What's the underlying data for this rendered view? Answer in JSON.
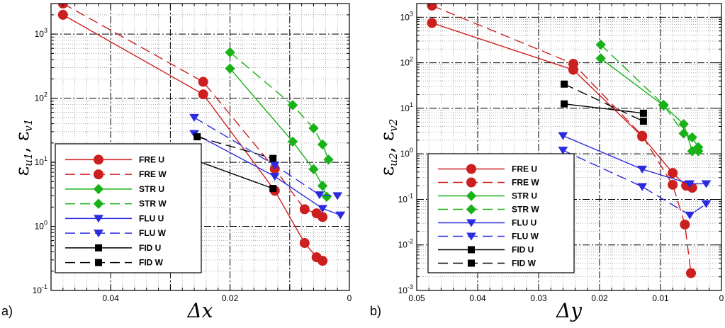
{
  "chart_data": [
    {
      "type": "line",
      "panel_label": "a)",
      "xlabel": "Δx",
      "ylabel_main": "ε",
      "ylabel_sub1": "u1",
      "ylabel_sep": ", ε",
      "ylabel_sub2": "v1",
      "x_reversed": true,
      "xlim": [
        0.05,
        0
      ],
      "ylim": [
        0.1,
        3000
      ],
      "y_log": true,
      "grid": true,
      "xticks": [
        0.04,
        0.02,
        0
      ],
      "xtick_labels": [
        "0.04",
        "0.02",
        "0"
      ],
      "yticks": [
        0.1,
        1,
        10,
        100,
        1000
      ],
      "ytick_base": "10",
      "ytick_exps": [
        "-1",
        "0",
        "1",
        "2",
        "3"
      ],
      "legend_position": "bottom-left",
      "series": [
        {
          "name": "FRE U",
          "color": "#cc1f1f",
          "dash": "solid",
          "marker": "circle",
          "x": [
            0.048,
            0.0245,
            0.0125,
            0.0075,
            0.0055,
            0.0045
          ],
          "y": [
            2000,
            115,
            3.6,
            0.55,
            0.33,
            0.29
          ]
        },
        {
          "name": "FRE W",
          "color": "#cc1f1f",
          "dash": "dashed",
          "marker": "circle",
          "x": [
            0.048,
            0.0245,
            0.0125,
            0.0075,
            0.0055,
            0.0045
          ],
          "y": [
            3000,
            180,
            7.9,
            1.85,
            1.6,
            1.4
          ]
        },
        {
          "name": "STR U",
          "color": "#19b219",
          "dash": "solid",
          "marker": "diamond",
          "x": [
            0.02,
            0.0095,
            0.006,
            0.0045,
            0.0038
          ],
          "y": [
            290,
            21,
            7.8,
            4.3,
            2.9
          ]
        },
        {
          "name": "STR W",
          "color": "#19b219",
          "dash": "dashed",
          "marker": "diamond",
          "x": [
            0.02,
            0.0095,
            0.006,
            0.0045,
            0.0035
          ],
          "y": [
            520,
            78,
            34,
            19,
            11
          ]
        },
        {
          "name": "FLU U",
          "color": "#2a2ae0",
          "dash": "solid",
          "marker": "triangle-down",
          "x": [
            0.026,
            0.0125,
            0.0045,
            0.0015
          ],
          "y": [
            28,
            6.0,
            1.9,
            1.5
          ]
        },
        {
          "name": "FLU W",
          "color": "#2a2ae0",
          "dash": "dashed",
          "marker": "triangle-down",
          "x": [
            0.026,
            0.0125,
            0.005,
            0.002
          ],
          "y": [
            50,
            9.0,
            3.1,
            3.0
          ]
        },
        {
          "name": "FID U",
          "color": "#000000",
          "dash": "solid",
          "marker": "square",
          "x": [
            0.0255,
            0.0128
          ],
          "y": [
            10.5,
            3.9
          ]
        },
        {
          "name": "FID W",
          "color": "#000000",
          "dash": "dashed",
          "marker": "square",
          "x": [
            0.0255,
            0.0128
          ],
          "y": [
            25,
            11.5
          ]
        }
      ]
    },
    {
      "type": "line",
      "panel_label": "b)",
      "xlabel": "Δy",
      "ylabel_main": "ε",
      "ylabel_sub1": "u2",
      "ylabel_sep": ", ε",
      "ylabel_sub2": "v2",
      "x_reversed": true,
      "xlim": [
        0.05,
        0
      ],
      "ylim": [
        0.001,
        2000
      ],
      "y_log": true,
      "grid": true,
      "xticks": [
        0.05,
        0.04,
        0.03,
        0.02,
        0.01,
        0
      ],
      "xtick_labels": [
        "0.05",
        "0.04",
        "0.03",
        "0.02",
        "0.01",
        "0"
      ],
      "yticks": [
        0.001,
        0.01,
        0.1,
        1,
        10,
        100,
        1000
      ],
      "ytick_base": "10",
      "ytick_exps": [
        "-3",
        "-2",
        "-1",
        "0",
        "1",
        "2",
        "3"
      ],
      "legend_position": "bottom-left",
      "series": [
        {
          "name": "FRE U",
          "color": "#cc1f1f",
          "dash": "solid",
          "marker": "circle",
          "x": [
            0.0475,
            0.0243,
            0.013,
            0.008,
            0.0058,
            0.0048
          ],
          "y": [
            750,
            70,
            2.4,
            0.38,
            0.2,
            0.18
          ]
        },
        {
          "name": "FRE W",
          "color": "#cc1f1f",
          "dash": "dashed",
          "marker": "circle",
          "x": [
            0.0475,
            0.0243,
            0.013,
            0.008,
            0.006,
            0.005
          ],
          "y": [
            1800,
            95,
            2.5,
            0.21,
            0.028,
            0.0024
          ]
        },
        {
          "name": "STR U",
          "color": "#19b219",
          "dash": "solid",
          "marker": "diamond",
          "x": [
            0.0198,
            0.0095,
            0.0062,
            0.0048,
            0.0038
          ],
          "y": [
            125,
            11.5,
            4.5,
            1.15,
            1.15
          ]
        },
        {
          "name": "STR W",
          "color": "#19b219",
          "dash": "dashed",
          "marker": "diamond",
          "x": [
            0.0198,
            0.0095,
            0.0062,
            0.0048,
            0.0038
          ],
          "y": [
            250,
            12,
            2.8,
            2.3,
            1.4
          ]
        },
        {
          "name": "FLU U",
          "color": "#2a2ae0",
          "dash": "solid",
          "marker": "triangle-down",
          "x": [
            0.026,
            0.013,
            0.0052,
            0.0025
          ],
          "y": [
            2.5,
            0.46,
            0.22,
            0.22
          ]
        },
        {
          "name": "FLU W",
          "color": "#2a2ae0",
          "dash": "dashed",
          "marker": "triangle-down",
          "x": [
            0.026,
            0.013,
            0.0052,
            0.0025
          ],
          "y": [
            1.2,
            0.19,
            0.045,
            0.08
          ]
        },
        {
          "name": "FID U",
          "color": "#000000",
          "dash": "solid",
          "marker": "square",
          "x": [
            0.0258,
            0.0128
          ],
          "y": [
            12.5,
            7.8
          ]
        },
        {
          "name": "FID W",
          "color": "#000000",
          "dash": "dashed",
          "marker": "square",
          "x": [
            0.0258,
            0.0128
          ],
          "y": [
            34,
            5.2
          ]
        }
      ]
    }
  ]
}
